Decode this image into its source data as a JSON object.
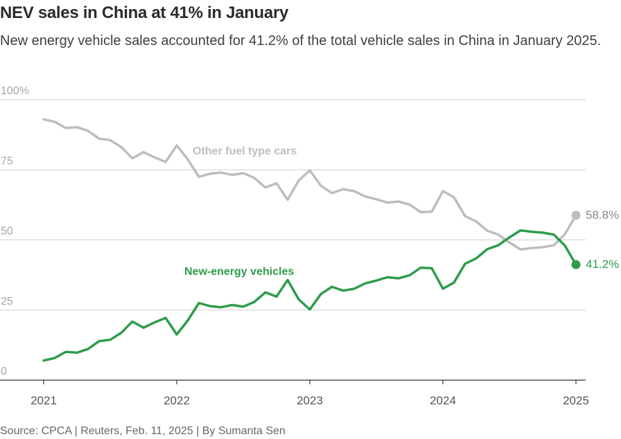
{
  "title": "NEV sales in China at 41% in January",
  "subtitle": "New energy vehicle sales accounted for 41.2% of the total vehicle sales in China in January 2025.",
  "source": "Source: CPCA | Reuters, Feb. 11, 2025 | By Sumanta Sen",
  "colors": {
    "nev": "#2e9c4b",
    "other": "#bdbdbd",
    "grid": "#cfcfcf",
    "axis": "#333333"
  },
  "chart_data": {
    "type": "line",
    "title": "NEV sales in China at 41% in January",
    "xlabel": "",
    "ylabel": "",
    "ylim": [
      0,
      100
    ],
    "y_ticks": [
      {
        "value": 0,
        "label": "0"
      },
      {
        "value": 25,
        "label": "25"
      },
      {
        "value": 50,
        "label": "50"
      },
      {
        "value": 75,
        "label": "75"
      },
      {
        "value": 100,
        "label": "100%"
      }
    ],
    "x_ticks": [
      {
        "value": 0,
        "label": "2021"
      },
      {
        "value": 12,
        "label": "2022"
      },
      {
        "value": 24,
        "label": "2023"
      },
      {
        "value": 36,
        "label": "2024"
      },
      {
        "value": 48,
        "label": "2025"
      }
    ],
    "x_range": [
      0,
      49
    ],
    "grid": true,
    "x_unit": "months since January 2021",
    "series": [
      {
        "name": "New-energy vehicles",
        "key": "nev",
        "end_label": "41.2%",
        "values": [
          7.0,
          7.9,
          10.1,
          9.8,
          11.1,
          13.9,
          14.4,
          16.9,
          20.9,
          18.7,
          20.6,
          22.2,
          16.3,
          21.3,
          27.5,
          26.4,
          26.0,
          26.8,
          26.2,
          27.9,
          31.3,
          29.8,
          35.7,
          28.8,
          25.2,
          30.7,
          33.3,
          31.9,
          32.6,
          34.5,
          35.5,
          36.7,
          36.3,
          37.4,
          40.1,
          39.9,
          32.6,
          34.8,
          41.5,
          43.4,
          46.7,
          48.1,
          50.9,
          53.4,
          52.9,
          52.6,
          51.9,
          48.0,
          41.2
        ]
      },
      {
        "name": "Other fuel type cars",
        "key": "other",
        "end_label": "58.8%",
        "values": [
          93.0,
          92.1,
          89.9,
          90.2,
          88.9,
          86.1,
          85.6,
          83.1,
          79.1,
          81.3,
          79.4,
          77.8,
          83.7,
          78.7,
          72.5,
          73.6,
          74.0,
          73.2,
          73.8,
          72.1,
          68.7,
          70.2,
          64.3,
          71.2,
          74.8,
          69.3,
          66.7,
          68.1,
          67.4,
          65.5,
          64.5,
          63.3,
          63.7,
          62.6,
          59.9,
          60.1,
          67.4,
          65.2,
          58.5,
          56.6,
          53.3,
          51.9,
          49.1,
          46.6,
          47.1,
          47.4,
          48.1,
          52.0,
          58.8
        ]
      }
    ]
  }
}
